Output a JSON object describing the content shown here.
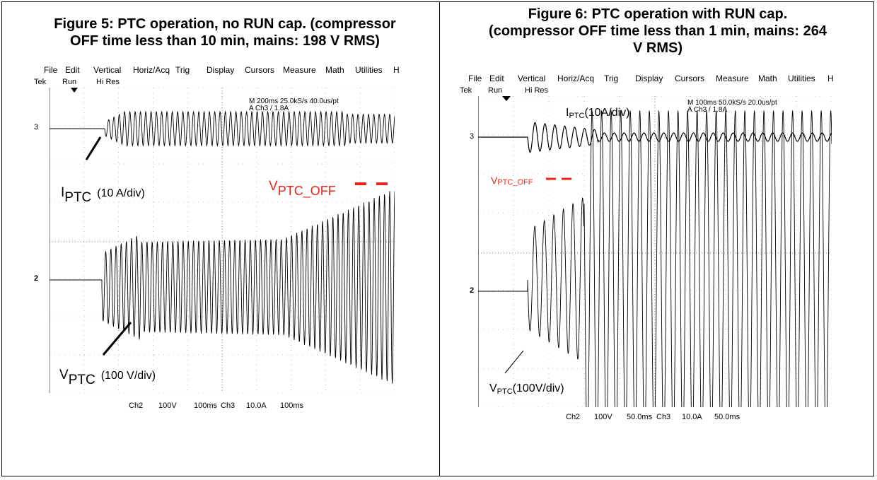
{
  "figures": [
    {
      "caption_line1": "Figure 5: PTC operation, no RUN cap. (compressor",
      "caption_line2": "OFF time less than 10 min, mains: 198 V RMS)",
      "menu": [
        "File",
        "Edit",
        "Vertical",
        "Horiz/Acq",
        "Trig",
        "Display",
        "Cursors",
        "Measure",
        "Math",
        "Utilities",
        "H"
      ],
      "status": [
        "Tek",
        "Run",
        "Hi Res"
      ],
      "readout_line1": "M 200ms 25.0kS/s  40.0us/pt",
      "readout_line2": "A Ch3 / 1.8A",
      "marker_ch3": "3",
      "marker_ch2": "2",
      "label_i": "I",
      "label_i_sub": "PTC",
      "label_i_scale": "(10 A/div)",
      "label_v": "V",
      "label_v_sub": "PTC",
      "label_v_scale": "(100 V/div)",
      "label_off": "V",
      "label_off_sub": "PTC_OFF",
      "bottom": [
        "Ch2",
        "100V",
        "100ms",
        "Ch3",
        "10.0A",
        "100ms"
      ]
    },
    {
      "caption_line1": "Figure 6: PTC operation with RUN cap.",
      "caption_line2": "(compressor OFF time less than 1 min, mains: 264",
      "caption_line3": "V RMS)",
      "menu": [
        "File",
        "Edit",
        "Vertical",
        "Horiz/Acq",
        "Trig",
        "Display",
        "Cursors",
        "Measure",
        "Math",
        "Utilities",
        "H"
      ],
      "status": [
        "Tek",
        "Run",
        "Hi Res"
      ],
      "readout_line1": "M 100ms 50.0kS/s  20.0us/pt",
      "readout_line2": "A Ch3 / 1.8A",
      "marker_ch3": "3",
      "marker_ch2": "2",
      "label_i": "I",
      "label_i_sub": "PTC",
      "label_i_scale": "(10A/div)",
      "label_v": "V",
      "label_v_sub": "PTC",
      "label_v_scale": "(100V/div)",
      "label_off": "V",
      "label_off_sub": "PTC_OFF",
      "bottom": [
        "Ch2",
        "100V",
        "50.0ms",
        "Ch3",
        "10.0A",
        "50.0ms"
      ]
    }
  ],
  "colors": {
    "accent_red": "#e8261c",
    "trace": "#000000"
  }
}
